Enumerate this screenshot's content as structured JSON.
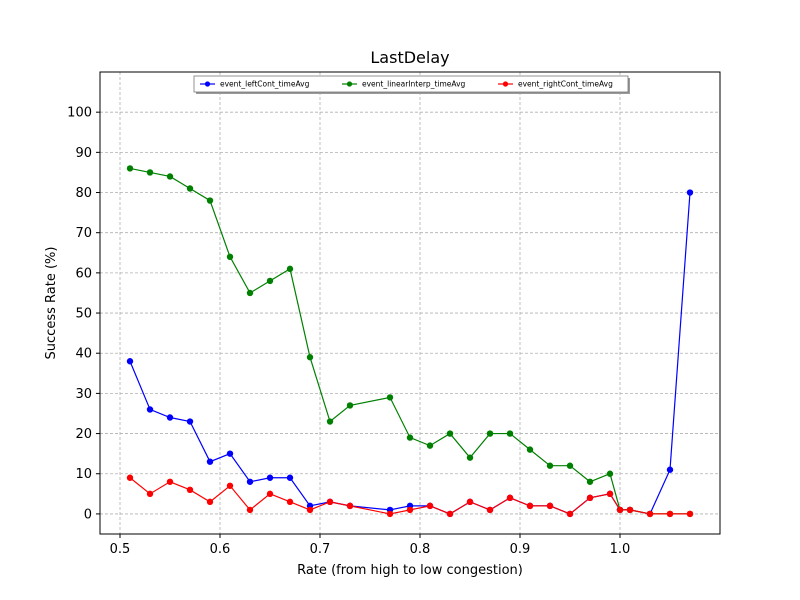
{
  "chart_data": {
    "type": "line",
    "title": "LastDelay",
    "xlabel": "Rate (from high to low congestion)",
    "ylabel": "Success Rate (%)",
    "xlim": [
      0.48,
      1.1
    ],
    "ylim": [
      -5,
      110
    ],
    "xticks": [
      0.5,
      0.6,
      0.7,
      0.8,
      0.9,
      1.0
    ],
    "xtick_labels": [
      "0.5",
      "0.6",
      "0.7",
      "0.8",
      "0.9",
      "1.0"
    ],
    "yticks": [
      0,
      10,
      20,
      30,
      40,
      50,
      60,
      70,
      80,
      90,
      100
    ],
    "ytick_labels": [
      "0",
      "10",
      "20",
      "30",
      "40",
      "50",
      "60",
      "70",
      "80",
      "90",
      "100"
    ],
    "grid": true,
    "legend_position": "top-center",
    "series": [
      {
        "name": "event_leftCont_timeAvg",
        "color": "#0000ff",
        "x": [
          0.51,
          0.53,
          0.55,
          0.57,
          0.59,
          0.61,
          0.63,
          0.65,
          0.67,
          0.69,
          0.71,
          0.73,
          0.77,
          0.79,
          0.81,
          0.83,
          0.85,
          0.87,
          0.89,
          0.91,
          0.93,
          0.95,
          0.97,
          0.99,
          1.0,
          1.01,
          1.03,
          1.05,
          1.07
        ],
        "values": [
          38,
          26,
          24,
          23,
          13,
          15,
          8,
          9,
          9,
          2,
          3,
          2,
          1,
          2,
          2,
          0,
          3,
          1,
          4,
          2,
          2,
          0,
          4,
          5,
          1,
          1,
          0,
          11,
          80
        ]
      },
      {
        "name": "event_linearInterp_timeAvg",
        "color": "#008000",
        "x": [
          0.51,
          0.53,
          0.55,
          0.57,
          0.59,
          0.61,
          0.63,
          0.65,
          0.67,
          0.69,
          0.71,
          0.73,
          0.77,
          0.79,
          0.81,
          0.83,
          0.85,
          0.87,
          0.89,
          0.91,
          0.93,
          0.95,
          0.97,
          0.99,
          1.0,
          1.01,
          1.03,
          1.05,
          1.07
        ],
        "values": [
          86,
          85,
          84,
          81,
          78,
          64,
          55,
          58,
          61,
          39,
          23,
          27,
          29,
          19,
          17,
          20,
          14,
          20,
          20,
          16,
          12,
          12,
          8,
          10,
          1,
          1,
          0,
          0,
          0
        ]
      },
      {
        "name": "event_rightCont_timeAvg",
        "color": "#ff0000",
        "x": [
          0.51,
          0.53,
          0.55,
          0.57,
          0.59,
          0.61,
          0.63,
          0.65,
          0.67,
          0.69,
          0.71,
          0.73,
          0.77,
          0.79,
          0.81,
          0.83,
          0.85,
          0.87,
          0.89,
          0.91,
          0.93,
          0.95,
          0.97,
          0.99,
          1.0,
          1.01,
          1.03,
          1.05,
          1.07
        ],
        "values": [
          9,
          5,
          8,
          6,
          3,
          7,
          1,
          5,
          3,
          1,
          3,
          2,
          0,
          1,
          2,
          0,
          3,
          1,
          4,
          2,
          2,
          0,
          4,
          5,
          1,
          1,
          0,
          0,
          0
        ]
      }
    ]
  }
}
